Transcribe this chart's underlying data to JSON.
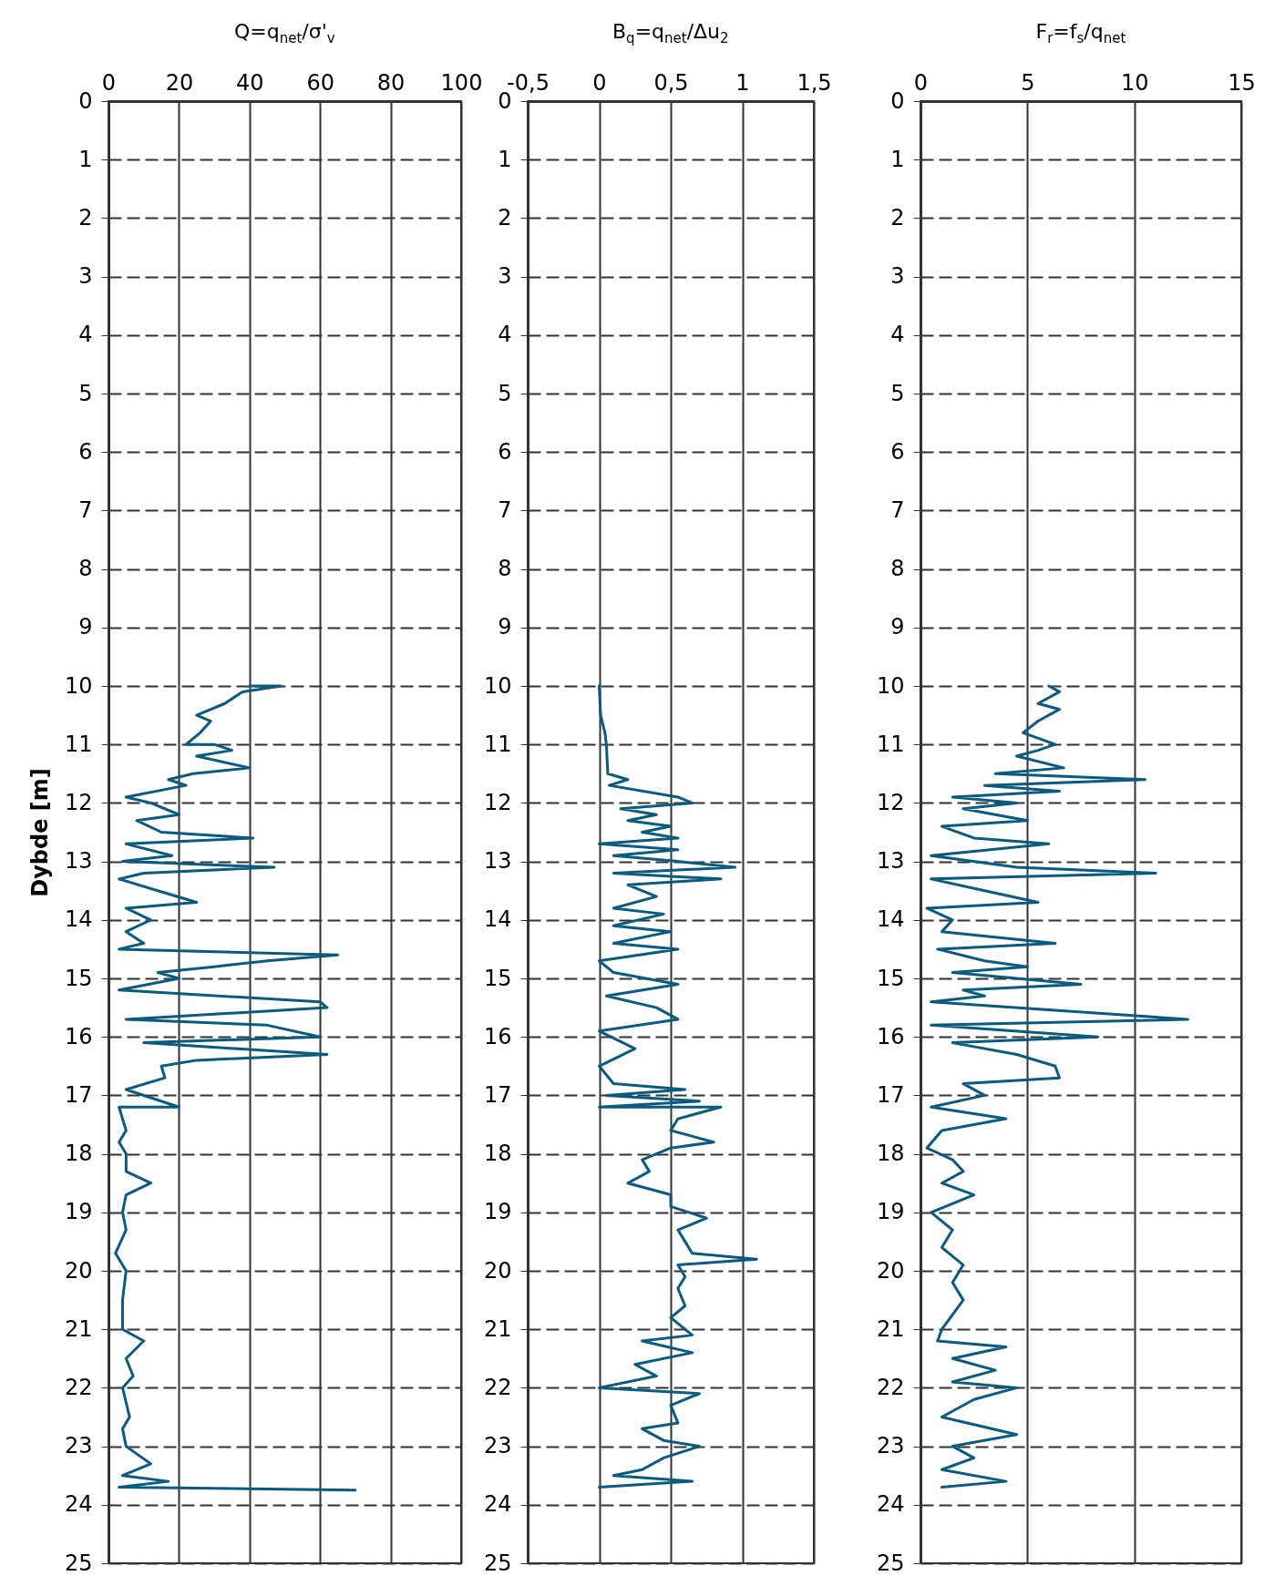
{
  "chart_data": [
    {
      "type": "line",
      "title": "Q=q$_{net}$/σ'$_{v}$",
      "ylabel": "Dybde [m]",
      "xlim": [
        0,
        100
      ],
      "xticks": [
        0,
        20,
        40,
        60,
        80,
        100
      ],
      "ylim": [
        25,
        0
      ],
      "yticks": [
        0,
        1,
        2,
        3,
        4,
        5,
        6,
        7,
        8,
        9,
        10,
        11,
        12,
        13,
        14,
        15,
        16,
        17,
        18,
        19,
        20,
        21,
        22,
        23,
        24,
        25
      ],
      "grid": true,
      "series": [
        {
          "color": "#0b5a80",
          "x": [
            40,
            49,
            38,
            33,
            25,
            29,
            26,
            22,
            30,
            35,
            25,
            40,
            24,
            17,
            22,
            5,
            12,
            20,
            8,
            15,
            41,
            5,
            18,
            4,
            47,
            10,
            3,
            14,
            25,
            5,
            12,
            5,
            10,
            3,
            65,
            45,
            30,
            14,
            20,
            3,
            60,
            62,
            5,
            45,
            60,
            10,
            62,
            25,
            15,
            16,
            5,
            20,
            3,
            4,
            5,
            3,
            5,
            5,
            12,
            5,
            4,
            5,
            2,
            5,
            4,
            4,
            10,
            5,
            7,
            4,
            6,
            4,
            5,
            12,
            4,
            17,
            3,
            70
          ],
          "values": [
            10.0,
            10.0,
            10.1,
            10.3,
            10.5,
            10.6,
            10.8,
            11.0,
            11.0,
            11.1,
            11.2,
            11.4,
            11.5,
            11.6,
            11.7,
            11.9,
            12.0,
            12.2,
            12.3,
            12.5,
            12.6,
            12.7,
            12.9,
            13.0,
            13.1,
            13.2,
            13.3,
            13.5,
            13.7,
            13.8,
            14.0,
            14.2,
            14.4,
            14.5,
            14.6,
            14.7,
            14.8,
            14.9,
            15.0,
            15.2,
            15.4,
            15.5,
            15.7,
            15.8,
            16.0,
            16.1,
            16.3,
            16.4,
            16.5,
            16.7,
            16.9,
            17.2,
            17.2,
            17.4,
            17.6,
            17.8,
            18.0,
            18.3,
            18.5,
            18.7,
            19.0,
            19.3,
            19.7,
            20.0,
            20.5,
            21.0,
            21.2,
            21.5,
            21.8,
            22.0,
            22.5,
            22.7,
            23.0,
            23.3,
            23.5,
            23.6,
            23.7,
            23.75
          ]
        }
      ]
    },
    {
      "type": "line",
      "title": "B$_{q}$=q$_{net}$/Δu$_{2}$",
      "xlim": [
        -0.5,
        1.5
      ],
      "xticks": [
        {
          "value": -0.5,
          "label": "-0,5"
        },
        0,
        {
          "value": 0.5,
          "label": "0,5"
        },
        1,
        {
          "value": 1.5,
          "label": "1,5"
        }
      ],
      "ylim": [
        25,
        0
      ],
      "yticks": [
        0,
        1,
        2,
        3,
        4,
        5,
        6,
        7,
        8,
        9,
        10,
        11,
        12,
        13,
        14,
        15,
        16,
        17,
        18,
        19,
        20,
        21,
        22,
        23,
        24,
        25
      ],
      "grid": true,
      "series": [
        {
          "color": "#0b5a80",
          "x": [
            0,
            0.01,
            0.04,
            0.05,
            0.06,
            0.2,
            0.07,
            0.55,
            0.65,
            0.15,
            0.4,
            0.2,
            0.5,
            0.3,
            0.55,
            0.0,
            0.55,
            0.1,
            0.55,
            0.95,
            0.1,
            0.85,
            0.2,
            0.4,
            0.1,
            0.45,
            0.1,
            0.5,
            0.1,
            0.55,
            0.0,
            0.1,
            0.55,
            0.05,
            0.4,
            0.55,
            0.0,
            0.25,
            0.0,
            0.1,
            0.6,
            0.05,
            0.7,
            0.0,
            0.85,
            0.55,
            0.5,
            0.8,
            0.5,
            0.3,
            0.35,
            0.2,
            0.5,
            0.5,
            0.75,
            0.55,
            0.6,
            0.65,
            1.1,
            0.55,
            0.6,
            0.55,
            0.6,
            0.5,
            0.65,
            0.3,
            0.65,
            0.25,
            0.4,
            0.0,
            0.7,
            0.5,
            0.55,
            0.3,
            0.45,
            0.7,
            0.45,
            0.3,
            0.1,
            0.65,
            0.0
          ],
          "values": [
            10.0,
            10.5,
            10.8,
            11.0,
            11.5,
            11.6,
            11.7,
            11.9,
            12.0,
            12.1,
            12.2,
            12.3,
            12.4,
            12.5,
            12.6,
            12.7,
            12.8,
            12.9,
            13.0,
            13.1,
            13.2,
            13.3,
            13.4,
            13.6,
            13.8,
            13.9,
            14.1,
            14.2,
            14.4,
            14.5,
            14.7,
            14.9,
            15.1,
            15.3,
            15.5,
            15.7,
            15.9,
            16.2,
            16.5,
            16.8,
            16.9,
            17.0,
            17.1,
            17.2,
            17.2,
            17.4,
            17.6,
            17.8,
            17.9,
            18.1,
            18.3,
            18.5,
            18.7,
            18.9,
            19.1,
            19.3,
            19.5,
            19.7,
            19.8,
            19.9,
            20.1,
            20.3,
            20.6,
            20.8,
            21.1,
            21.2,
            21.4,
            21.6,
            21.8,
            22.0,
            22.1,
            22.3,
            22.6,
            22.7,
            22.9,
            23.0,
            23.2,
            23.4,
            23.5,
            23.6,
            23.7
          ]
        }
      ]
    },
    {
      "type": "line",
      "title": "F$_{r}$=f$_{s}$/q$_{net}$",
      "xlim": [
        0,
        15
      ],
      "xticks": [
        0,
        5,
        10,
        15
      ],
      "ylim": [
        25,
        0
      ],
      "yticks": [
        0,
        1,
        2,
        3,
        4,
        5,
        6,
        7,
        8,
        9,
        10,
        11,
        12,
        13,
        14,
        15,
        16,
        17,
        18,
        19,
        20,
        21,
        22,
        23,
        24,
        25
      ],
      "grid": true,
      "series": [
        {
          "color": "#0b5a80",
          "x": [
            6.0,
            6.5,
            5.5,
            6.5,
            5.5,
            4.8,
            6.3,
            5.5,
            4.5,
            6.7,
            3.5,
            10.5,
            3.0,
            6.5,
            1.5,
            4.5,
            2.0,
            5.0,
            1.0,
            2.5,
            6.0,
            0.5,
            4.5,
            11.0,
            0.5,
            3.0,
            5.5,
            0.3,
            1.5,
            1.0,
            6.3,
            0.8,
            3.0,
            5.0,
            1.5,
            7.5,
            2.0,
            3.0,
            0.5,
            12.5,
            0.5,
            8.3,
            1.5,
            4.5,
            6.3,
            6.5,
            2.0,
            3.0,
            0.5,
            4.0,
            1.0,
            0.3,
            1.5,
            2.0,
            1.0,
            2.5,
            0.5,
            1.5,
            1.0,
            2.0,
            1.5,
            2.0,
            1.0,
            0.8,
            4.0,
            1.5,
            3.5,
            1.5,
            4.5,
            2.5,
            1.0,
            4.5,
            1.5,
            2.5,
            1.0,
            4.0,
            1.0
          ],
          "values": [
            10.0,
            10.1,
            10.3,
            10.4,
            10.6,
            10.8,
            11.0,
            11.1,
            11.2,
            11.4,
            11.5,
            11.6,
            11.7,
            11.8,
            11.9,
            12.0,
            12.1,
            12.3,
            12.4,
            12.6,
            12.7,
            12.9,
            13.1,
            13.2,
            13.3,
            13.5,
            13.7,
            13.8,
            14.0,
            14.2,
            14.4,
            14.5,
            14.7,
            14.8,
            14.9,
            15.1,
            15.2,
            15.3,
            15.4,
            15.7,
            15.8,
            16.0,
            16.1,
            16.3,
            16.5,
            16.7,
            16.8,
            17.0,
            17.2,
            17.4,
            17.6,
            17.9,
            18.1,
            18.3,
            18.5,
            18.7,
            19.0,
            19.3,
            19.6,
            19.9,
            20.2,
            20.5,
            21.0,
            21.2,
            21.3,
            21.5,
            21.7,
            21.9,
            22.0,
            22.2,
            22.5,
            22.8,
            23.0,
            23.2,
            23.4,
            23.6,
            23.7
          ]
        }
      ]
    }
  ]
}
